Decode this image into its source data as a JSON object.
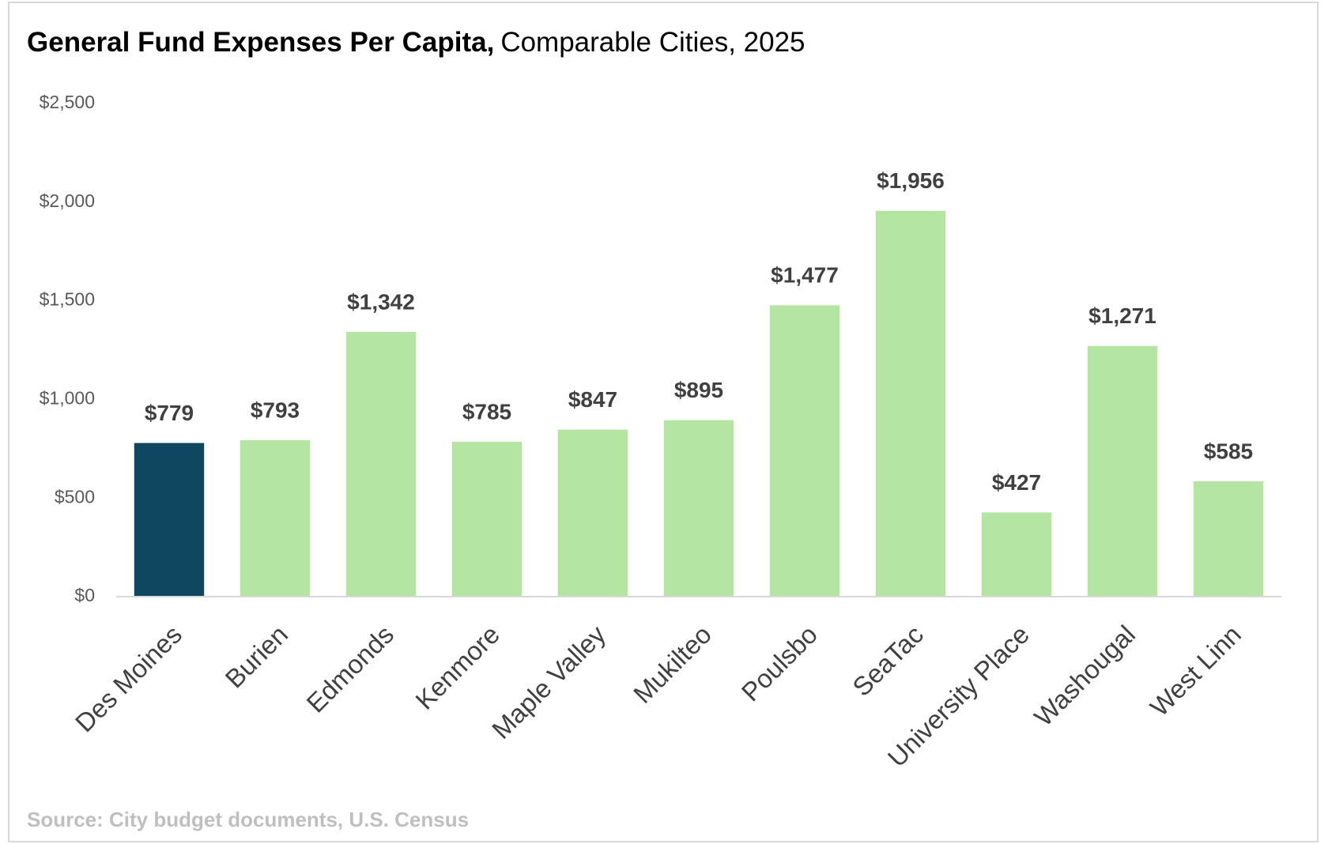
{
  "chart_data": {
    "type": "bar",
    "title": "General Fund Expenses Per Capita,",
    "subtitle": "Comparable Cities, 2025",
    "source": "Source: City budget documents, U.S. Census",
    "categories": [
      "Des Moines",
      "Burien",
      "Edmonds",
      "Kenmore",
      "Maple Valley",
      "Mukilteo",
      "Poulsbo",
      "SeaTac",
      "University Place",
      "Washougal",
      "West Linn"
    ],
    "values": [
      779,
      793,
      1342,
      785,
      847,
      895,
      1477,
      1956,
      427,
      1271,
      585
    ],
    "value_labels": [
      "$779",
      "$793",
      "$1,342",
      "$785",
      "$847",
      "$895",
      "$1,477",
      "$1,956",
      "$427",
      "$1,271",
      "$585"
    ],
    "colors": [
      "#0f4761",
      "#b4e5a2",
      "#b4e5a2",
      "#b4e5a2",
      "#b4e5a2",
      "#b4e5a2",
      "#b4e5a2",
      "#b4e5a2",
      "#b4e5a2",
      "#b4e5a2",
      "#b4e5a2"
    ],
    "ylim": [
      0,
      2500
    ],
    "yticks": [
      {
        "value": 0,
        "label": "$0"
      },
      {
        "value": 500,
        "label": "$500"
      },
      {
        "value": 1000,
        "label": "$1,000"
      },
      {
        "value": 1500,
        "label": "$1,500"
      },
      {
        "value": 2000,
        "label": "$2,000"
      },
      {
        "value": 2500,
        "label": "$2,500"
      }
    ],
    "grid": false
  }
}
